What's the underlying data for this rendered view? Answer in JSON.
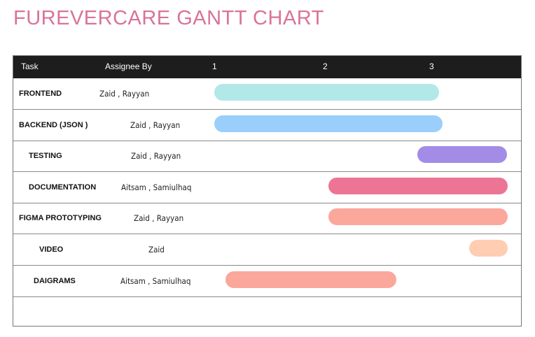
{
  "title": "FUREVERCARE GANTT CHART",
  "header": {
    "task": "Task",
    "assignee": "Assignee By"
  },
  "chart_data": {
    "type": "gantt",
    "x_ticks": [
      "1",
      "2",
      "3"
    ],
    "xlim": [
      1,
      3.7
    ],
    "tasks": [
      {
        "name": "FRONTEND",
        "assignee": "Zaid , Rayyan",
        "start": 1.0,
        "end": 3.07,
        "color": "#b3e8e8"
      },
      {
        "name": "BACKEND (JSON )",
        "assignee": "Zaid , Rayyan",
        "start": 1.0,
        "end": 3.1,
        "color": "#99cffa"
      },
      {
        "name": "TESTING",
        "assignee": "Zaid , Rayyan",
        "start": 2.87,
        "end": 3.7,
        "color": "#a28ce6"
      },
      {
        "name": "DOCUMENTATION",
        "assignee": "Aitsam , Samiulhaq",
        "start": 2.05,
        "end": 3.7,
        "color": "#ec7596"
      },
      {
        "name": "FIGMA PROTOTYPING",
        "assignee": "Zaid , Rayyan",
        "start": 2.05,
        "end": 3.7,
        "color": "#fba79c"
      },
      {
        "name": "VIDEO",
        "assignee": "Zaid",
        "start": 3.35,
        "end": 3.7,
        "color": "#ffcdb2"
      },
      {
        "name": "DAIGRAMS",
        "assignee": "Aitsam , Samiulhaq",
        "start": 1.1,
        "end": 2.68,
        "color": "#fba79c"
      }
    ]
  }
}
